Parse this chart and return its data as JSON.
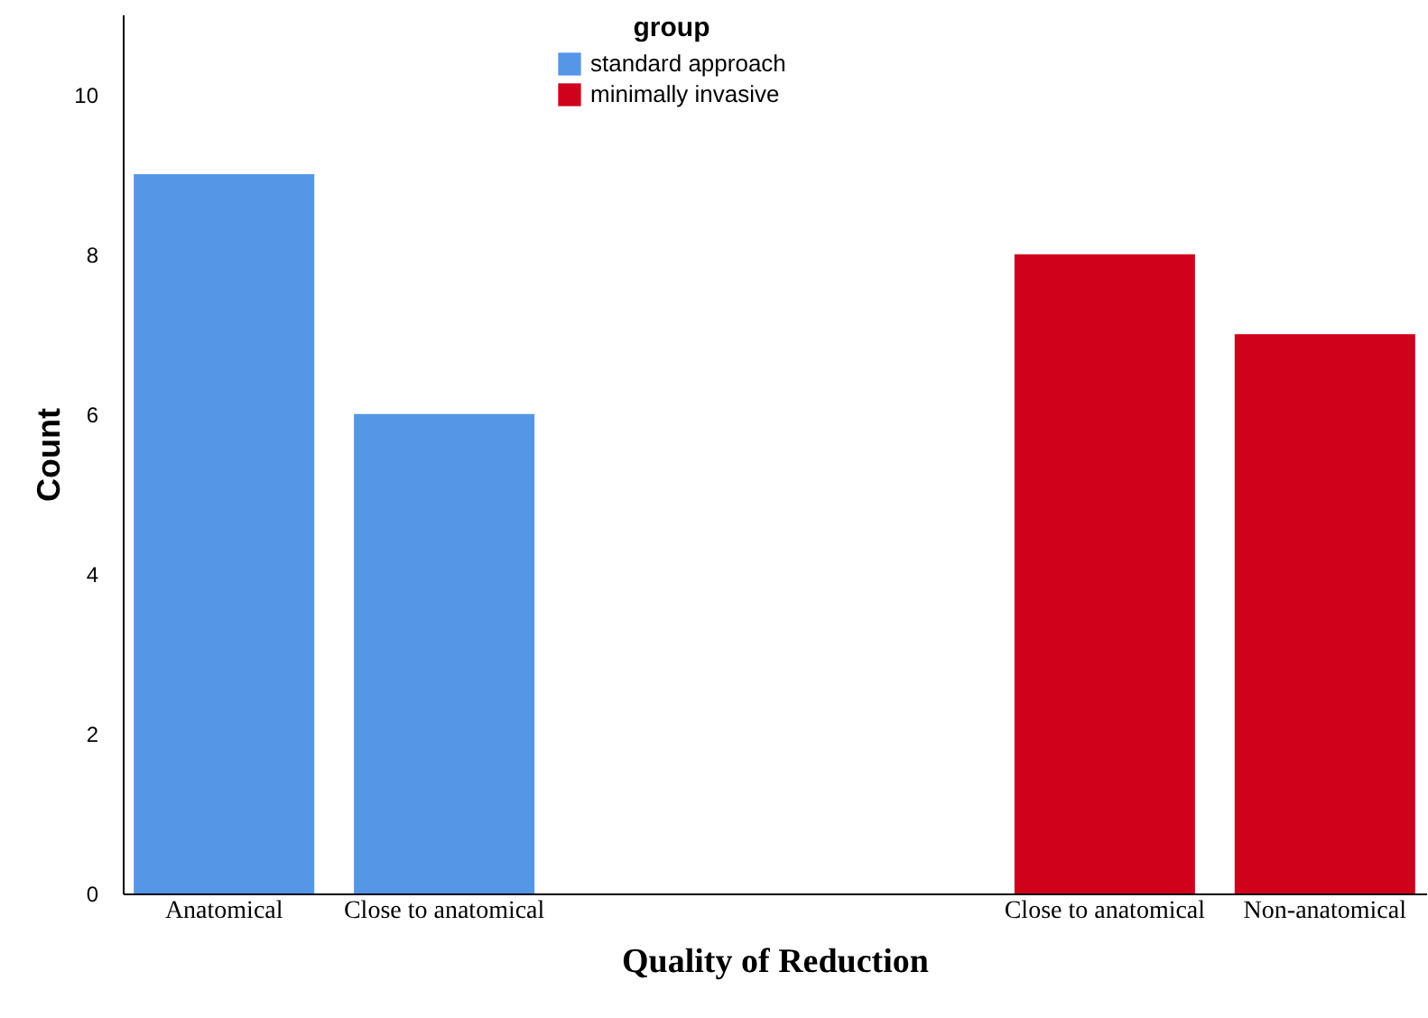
{
  "chart_data": {
    "type": "bar",
    "xlabel": "Quality of Reduction",
    "ylabel": "Count",
    "legend_title": "group",
    "categories": [
      "Anatomical",
      "Close to anatomical",
      null,
      null,
      "Close to anatomical",
      "Non-anatomical"
    ],
    "series": [
      {
        "name": "standard approach",
        "color": "#5596e6",
        "values": [
          9,
          6,
          null,
          null,
          null,
          null
        ]
      },
      {
        "name": "minimally invasive",
        "color": "#d0021b",
        "values": [
          null,
          null,
          null,
          null,
          8,
          7
        ]
      }
    ],
    "ylim": [
      0,
      11
    ],
    "yticks": [
      0,
      2,
      4,
      6,
      8,
      10
    ],
    "grid": false,
    "legend": "top"
  }
}
